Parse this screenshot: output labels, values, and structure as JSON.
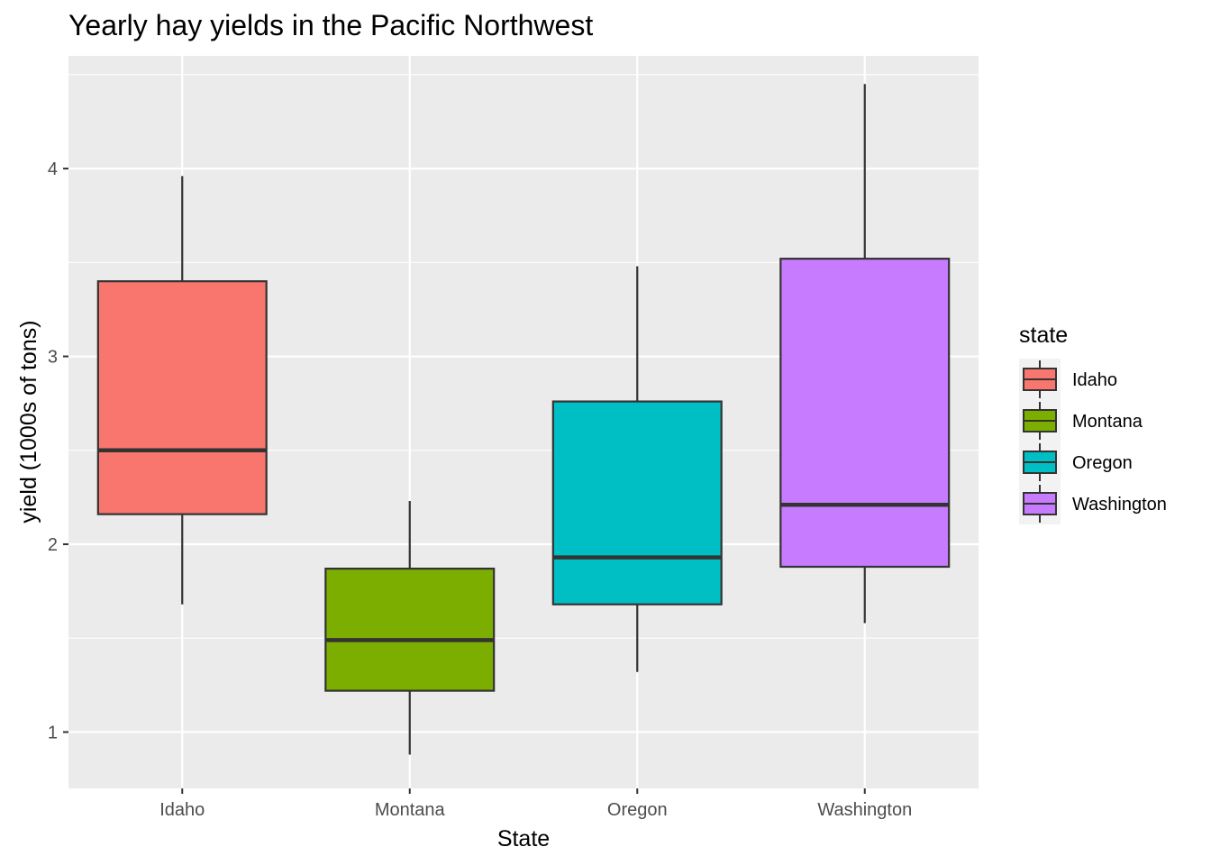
{
  "chart_data": {
    "type": "boxplot",
    "title": "Yearly hay yields in the Pacific Northwest",
    "xlabel": "State",
    "ylabel": "yield (1000s of tons)",
    "ylim": [
      0.7,
      4.6
    ],
    "yticks": [
      1,
      2,
      3,
      4
    ],
    "grid": true,
    "legend": {
      "title": "state",
      "placement": "right"
    },
    "categories": [
      "Idaho",
      "Montana",
      "Oregon",
      "Washington"
    ],
    "series": [
      {
        "name": "Idaho",
        "color": "#F8766D",
        "min": 1.68,
        "q1": 2.16,
        "median": 2.5,
        "q3": 3.4,
        "max": 3.96
      },
      {
        "name": "Montana",
        "color": "#7CAE00",
        "min": 0.88,
        "q1": 1.22,
        "median": 1.49,
        "q3": 1.87,
        "max": 2.23
      },
      {
        "name": "Oregon",
        "color": "#00BFC4",
        "min": 1.32,
        "q1": 1.68,
        "median": 1.93,
        "q3": 2.76,
        "max": 3.48
      },
      {
        "name": "Washington",
        "color": "#C77CFF",
        "min": 1.58,
        "q1": 1.88,
        "median": 2.21,
        "q3": 3.52,
        "max": 4.45
      }
    ]
  }
}
